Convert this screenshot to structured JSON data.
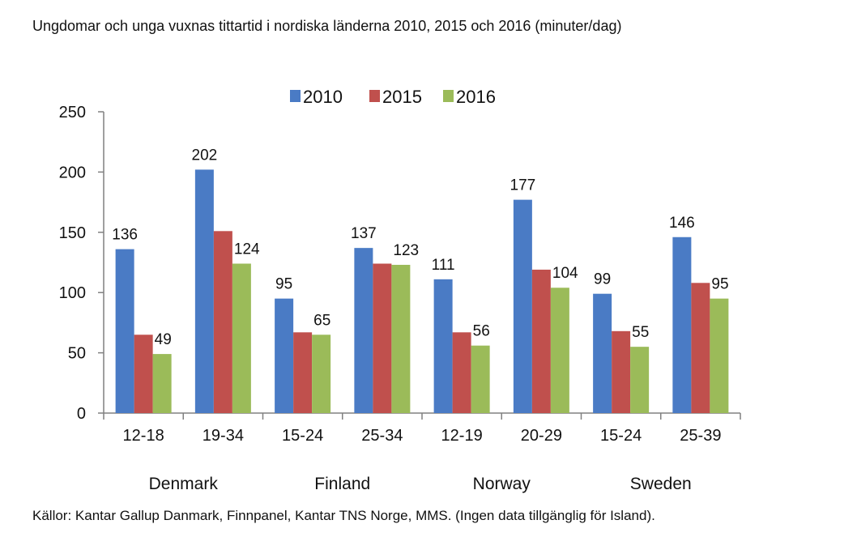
{
  "title": "Ungdomar och unga vuxnas tittartid i nordiska länderna 2010, 2015 och 2016 (minuter/dag)",
  "source": "Källor: Kantar Gallup Danmark, Finnpanel, Kantar TNS Norge, MMS. (Ingen data tillgänglig för Island).",
  "colors": {
    "2010": "#4a7bc5",
    "2015": "#c0504d",
    "2016": "#9bbb59"
  },
  "chart_data": {
    "type": "bar",
    "title": "Ungdomar och unga vuxnas tittartid i nordiska länderna 2010, 2015 och 2016 (minuter/dag)",
    "categories": [
      "12-18",
      "19-34",
      "15-24",
      "25-34",
      "12-19",
      "20-29",
      "15-24",
      "25-39"
    ],
    "groups": [
      {
        "name": "Denmark",
        "categories": [
          "12-18",
          "19-34"
        ]
      },
      {
        "name": "Finland",
        "categories": [
          "15-24",
          "25-34"
        ]
      },
      {
        "name": "Norway",
        "categories": [
          "12-19",
          "20-29"
        ]
      },
      {
        "name": "Sweden",
        "categories": [
          "15-24",
          "25-39"
        ]
      }
    ],
    "series": [
      {
        "name": "2010",
        "values": [
          136,
          202,
          95,
          137,
          111,
          177,
          99,
          146
        ]
      },
      {
        "name": "2015",
        "values": [
          65,
          151,
          67,
          124,
          67,
          119,
          68,
          108
        ]
      },
      {
        "name": "2016",
        "values": [
          49,
          124,
          65,
          123,
          56,
          104,
          55,
          95
        ]
      }
    ],
    "labeled": {
      "2010": [
        136,
        202,
        95,
        137,
        111,
        177,
        99,
        146
      ],
      "2016": [
        49,
        124,
        65,
        123,
        56,
        104,
        55,
        95
      ]
    },
    "yticks": [
      0,
      50,
      100,
      150,
      200,
      250
    ],
    "ylim": [
      0,
      250
    ],
    "legend": "top",
    "grid": false,
    "xlabel": "",
    "ylabel": ""
  }
}
